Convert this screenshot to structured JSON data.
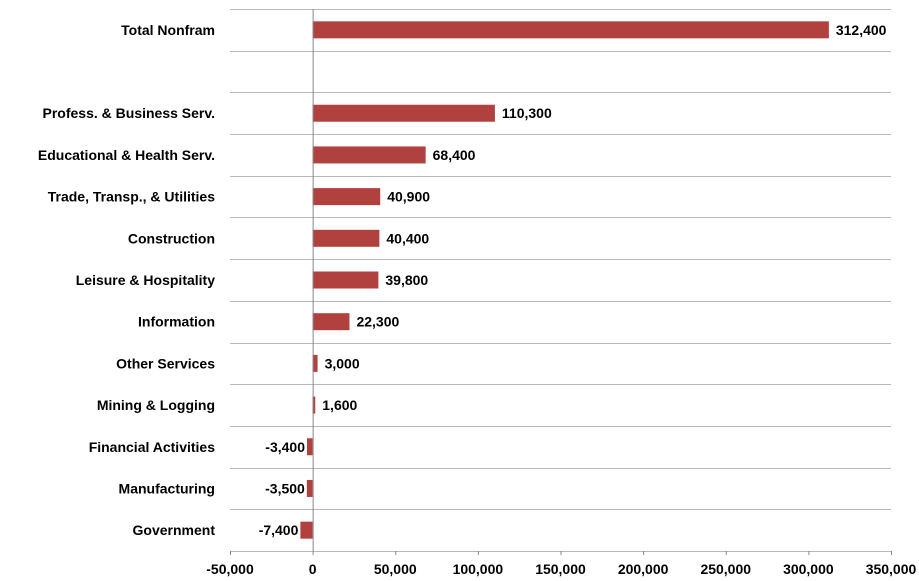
{
  "chart_data": {
    "type": "bar",
    "orientation": "horizontal",
    "categories": [
      "Total Nonfram",
      "",
      "Profess. & Business Serv.",
      "Educational & Health Serv.",
      "Trade, Transp., & Utilities",
      "Construction",
      "Leisure & Hospitality",
      "Information",
      "Other Services",
      "Mining & Logging",
      "Financial Activities",
      "Manufacturing",
      "Government"
    ],
    "values": [
      312400,
      null,
      110300,
      68400,
      40900,
      40400,
      39800,
      22300,
      3000,
      1600,
      -3400,
      -3500,
      -7400
    ],
    "value_labels": [
      "312,400",
      "",
      "110,300",
      "68,400",
      "40,900",
      "40,400",
      "39,800",
      "22,300",
      "3,000",
      "1,600",
      "-3,400",
      "-3,500",
      "-7,400"
    ],
    "xlim": [
      -50000,
      350000
    ],
    "x_ticks": [
      -50000,
      0,
      50000,
      100000,
      150000,
      200000,
      250000,
      300000,
      350000
    ],
    "x_tick_labels": [
      "-50,000",
      "0",
      "50,000",
      "100,000",
      "150,000",
      "200,000",
      "250,000",
      "300,000",
      "350,000"
    ],
    "title": "",
    "xlabel": "",
    "ylabel": "",
    "grid": "horizontal",
    "legend": "none",
    "colors": {
      "bar": "#B0413E",
      "grid": "#B9B9B9",
      "axis": "#868686"
    }
  }
}
